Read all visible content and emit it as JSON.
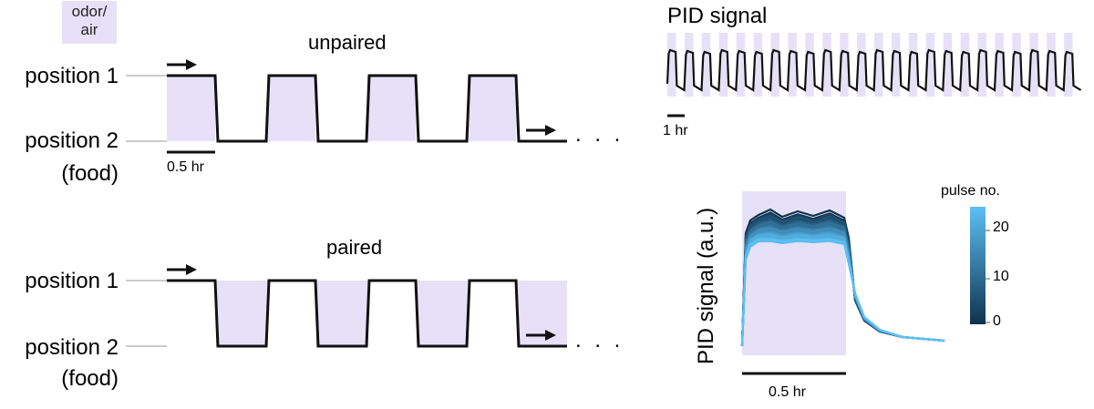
{
  "legend_key": {
    "line1": "odor/",
    "line2": "air",
    "fill_color": "#e6e1f7"
  },
  "schedules": [
    {
      "title": "unpaired",
      "position1_label": "position 1",
      "position2_label": "position 2",
      "position2_sub": "(food)",
      "odor_at": "position 1",
      "scale_bar": "0.5 hr",
      "ellipsis": ". . ."
    },
    {
      "title": "paired",
      "position1_label": "position 1",
      "position2_label": "position 2",
      "position2_sub": "(food)",
      "odor_at": "position 2",
      "ellipsis": ". . ."
    }
  ],
  "pid_trace": {
    "title": "PID signal",
    "scale_bar": "1 hr",
    "pulse_count": 24
  },
  "pid_overlay": {
    "ylabel": "PID signal (a.u.)",
    "xscale": "0.5 hr",
    "colorbar": {
      "title": "pulse no.",
      "ticks": [
        "20",
        "10",
        "0"
      ],
      "colors": {
        "low": "#10324e",
        "high": "#5cc0f5"
      }
    }
  },
  "colors": {
    "odor_fill": "#e6e1f7",
    "trace": "#111111",
    "axis_gray": "#bbbbbb"
  }
}
